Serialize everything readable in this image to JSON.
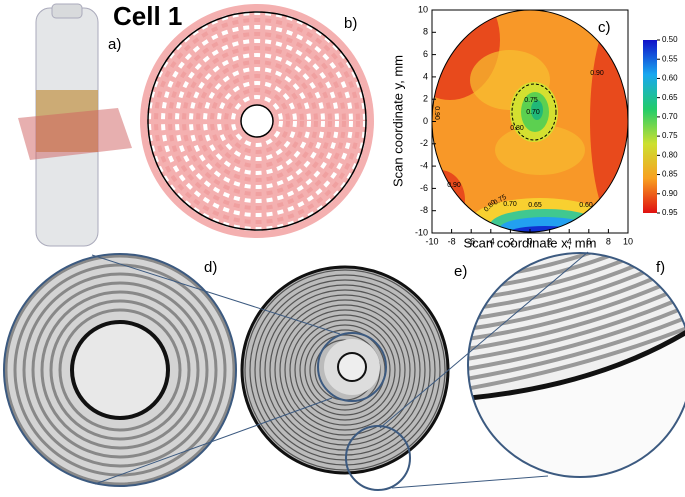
{
  "title": "Cell 1",
  "panel_labels": [
    "a)",
    "b)",
    "c)",
    "d)",
    "e)",
    "f)"
  ],
  "chart_data": {
    "type": "contour",
    "xlabel": "Scan coordinate x, mm",
    "ylabel": "Scan coordinate y, mm",
    "xlim": [
      -10,
      10
    ],
    "ylim": [
      -10,
      10
    ],
    "xticks": [
      -10,
      -8,
      -6,
      -4,
      -2,
      0,
      2,
      4,
      6,
      8,
      10
    ],
    "yticks": [
      -10,
      -8,
      -6,
      -4,
      -2,
      0,
      2,
      4,
      6,
      8,
      10
    ],
    "colorbar_lim": [
      0.5,
      0.95
    ],
    "colorbar_ticks": [
      {
        "value": 0.5,
        "label": "0.50"
      },
      {
        "value": 0.55,
        "label": "0.55"
      },
      {
        "value": 0.6,
        "label": "0.60"
      },
      {
        "value": 0.65,
        "label": "0.65"
      },
      {
        "value": 0.7,
        "label": "0.70"
      },
      {
        "value": 0.75,
        "label": "0.75"
      },
      {
        "value": 0.8,
        "label": "0.80"
      },
      {
        "value": 0.85,
        "label": "0.85"
      },
      {
        "value": 0.9,
        "label": "0.90"
      },
      {
        "value": 0.95,
        "label": "0.95"
      }
    ],
    "contour_labels": [
      "0.90",
      "0.75",
      "0.70",
      "0.80",
      "0.90",
      "0.90",
      "0.80",
      "0.75",
      "0.70",
      "0.65",
      "0.60"
    ]
  }
}
